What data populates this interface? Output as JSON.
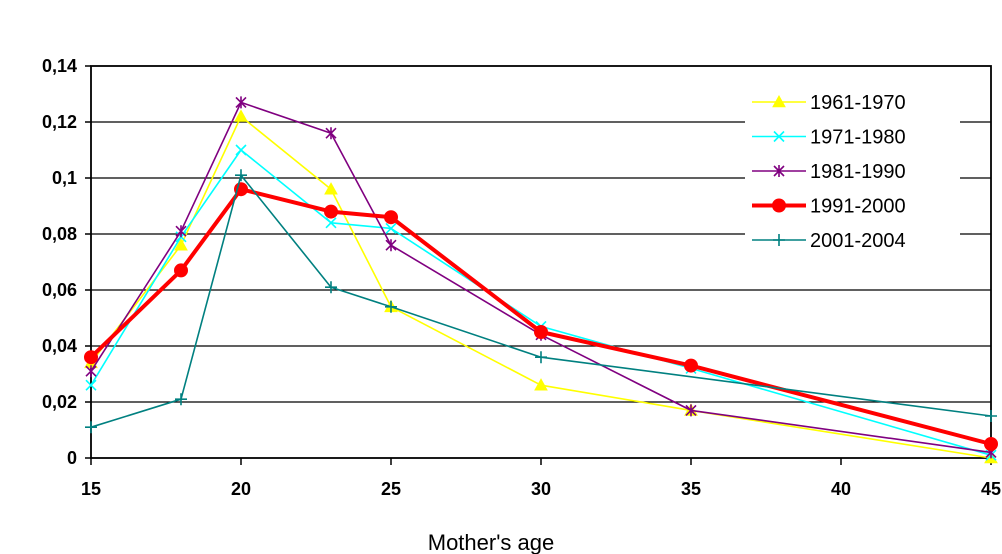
{
  "chart_data": {
    "type": "line",
    "title": "",
    "xlabel": "Mother's age",
    "ylabel": "",
    "xlim": [
      15,
      45
    ],
    "ylim": [
      0,
      0.14
    ],
    "xticks": [
      15,
      20,
      25,
      30,
      35,
      40,
      45
    ],
    "xtick_labels": [
      "15",
      "20",
      "25",
      "30",
      "35",
      "40",
      "45"
    ],
    "yticks": [
      0,
      0.02,
      0.04,
      0.06,
      0.08,
      0.1,
      0.12,
      0.14
    ],
    "ytick_labels": [
      "0",
      "0,02",
      "0,04",
      "0,06",
      "0,08",
      "0,1",
      "0,12",
      "0,14"
    ],
    "grid": "horizontal",
    "legend_position": "top-right",
    "series": [
      {
        "name": "1961-1970",
        "color": "#FFFF00",
        "marker": "triangle",
        "x": [
          15,
          18,
          20,
          23,
          25,
          30,
          35,
          45
        ],
        "values": [
          0.034,
          0.076,
          0.122,
          0.096,
          0.054,
          0.026,
          0.017,
          0.0
        ]
      },
      {
        "name": "1971-1980",
        "color": "#00FFFF",
        "marker": "x",
        "x": [
          15,
          18,
          20,
          23,
          25,
          30,
          35,
          45
        ],
        "values": [
          0.026,
          0.079,
          0.11,
          0.084,
          0.082,
          0.047,
          0.032,
          0.001
        ]
      },
      {
        "name": "1981-1990",
        "color": "#800080",
        "marker": "star",
        "x": [
          15,
          18,
          20,
          23,
          25,
          30,
          35,
          45
        ],
        "values": [
          0.031,
          0.081,
          0.127,
          0.116,
          0.076,
          0.044,
          0.017,
          0.002
        ]
      },
      {
        "name": "1991-2000",
        "color": "#FF0000",
        "marker": "circle",
        "x": [
          15,
          18,
          20,
          23,
          25,
          30,
          35,
          45
        ],
        "values": [
          0.036,
          0.067,
          0.096,
          0.088,
          0.086,
          0.045,
          0.033,
          0.005
        ]
      },
      {
        "name": "2001-2004",
        "color": "#008080",
        "marker": "plus",
        "x": [
          15,
          18,
          20,
          23,
          25,
          30,
          45
        ],
        "values": [
          0.011,
          0.021,
          0.101,
          0.061,
          0.054,
          0.036,
          0.015
        ]
      }
    ]
  }
}
